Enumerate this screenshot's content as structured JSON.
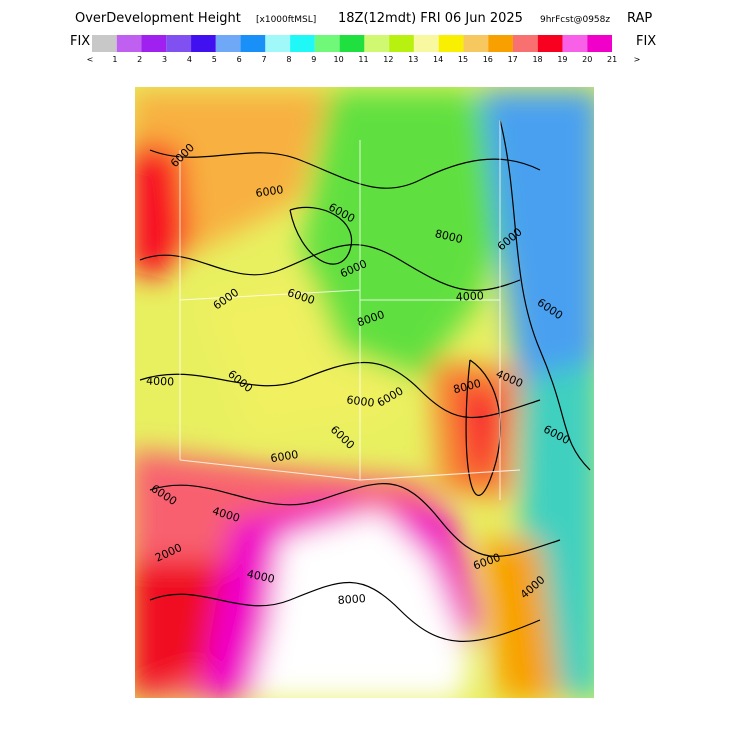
{
  "header": {
    "title_parts": [
      "OverDevelopment Height",
      "[x1000ftMSL]",
      "18Z(12mdt) FRI 06 Jun 2025",
      "9hrFcst@0958z",
      "RAP"
    ]
  },
  "colorbar": {
    "left_label": "FIX",
    "right_label": "FIX",
    "colors": [
      "#c8c8c8",
      "#c060f0",
      "#a020f0",
      "#8050f0",
      "#4010f0",
      "#70a8f8",
      "#1890f8",
      "#a0f8f8",
      "#20f8f8",
      "#70f878",
      "#20e040",
      "#d0f870",
      "#b8f010",
      "#f8f8a0",
      "#f8f000",
      "#f8c860",
      "#f8a000",
      "#f87070",
      "#f80020",
      "#f860e8",
      "#f000c8"
    ],
    "labels": [
      "<",
      "1",
      "2",
      "3",
      "4",
      "5",
      "6",
      "7",
      "8",
      "9",
      "10",
      "11",
      "12",
      "13",
      "14",
      "15",
      "16",
      "17",
      "18",
      "19",
      "20",
      "21",
      ">"
    ]
  },
  "map": {
    "contour_labels": [
      "6000",
      "6000",
      "6000",
      "6000",
      "8000",
      "6000",
      "4000",
      "6000",
      "8000",
      "6000",
      "6000",
      "4000",
      "6000",
      "8000",
      "4000",
      "6000",
      "6000",
      "6000",
      "6000",
      "6000",
      "2000",
      "4000",
      "4000",
      "8000",
      "6000",
      "6000",
      "4000"
    ]
  }
}
